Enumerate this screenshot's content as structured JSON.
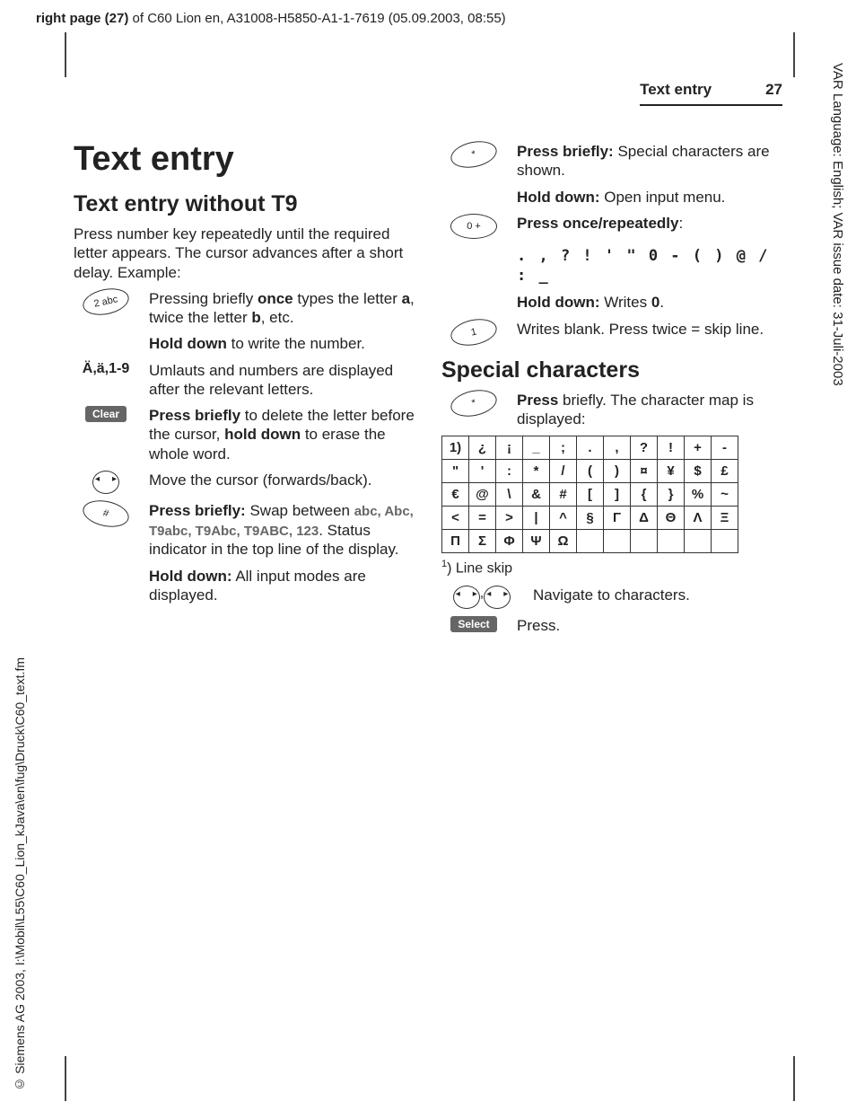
{
  "header": {
    "page_side": "right page (27)",
    "doc_info": " of C60 Lion en, A31008-H5850-A1-1-7619 (05.09.2003, 08:55)"
  },
  "side_right": "VAR Language: English; VAR issue date: 31-Juli-2003",
  "side_left": "© Siemens AG 2003, I:\\Mobil\\L55\\C60_Lion_kJava\\en\\fug\\Druck\\C60_text.fm",
  "running": {
    "title": "Text entry",
    "page": "27"
  },
  "col1": {
    "h1": "Text entry",
    "h2": "Text entry without T9",
    "intro": "Press number key repeatedly until the required letter appears. The cursor advances after a short delay. Example:",
    "key2_label": "2 abc",
    "key2_text1_a": "Pressing briefly ",
    "key2_text1_b": "once",
    "key2_text1_c": " types the letter ",
    "key2_text1_d": "a",
    "key2_text1_e": ", twice the letter ",
    "key2_text1_f": "b",
    "key2_text1_g": ", etc.",
    "key2_text2_a": "Hold down",
    "key2_text2_b": " to write the number.",
    "umlaut_label": "Ä,ä,1-9",
    "umlaut_text": "Umlauts and numbers are displayed after the relevant letters.",
    "clear_label": "Clear",
    "clear_text_a": "Press briefly",
    "clear_text_b": " to delete the letter before the cursor, ",
    "clear_text_c": "hold down",
    "clear_text_d": " to erase the whole word.",
    "nav_text": "Move the cursor (forwards/back).",
    "hash_key_label": "#",
    "hash_text1_a": "Press briefly:",
    "hash_text1_b": " Swap between ",
    "hash_text1_c": "abc, Abc, T9abc, T9Abc, T9ABC, 123",
    "hash_text1_d": ". Status indicator in the top line of the display.",
    "hash_text2_a": "Hold down:",
    "hash_text2_b": " All input modes are displayed."
  },
  "col2": {
    "star_label": "*",
    "star_text1_a": "Press briefly:",
    "star_text1_b": " Special characters are shown.",
    "star_text2_a": "Hold down:",
    "star_text2_b": " Open input menu.",
    "zero_label": "0 +",
    "zero_text1_a": "Press once/repeatedly",
    "zero_text1_b": ":",
    "zero_seq": ". , ? ! ' \" 0 - ( ) @ / : _",
    "zero_text2_a": "Hold down:",
    "zero_text2_b": " Writes ",
    "zero_text2_c": "0",
    "zero_text2_d": ".",
    "one_label": "1",
    "one_text": "Writes blank. Press twice = skip line.",
    "h2": "Special characters",
    "special_text_a": "Press",
    "special_text_b": " briefly. The character map is displayed:",
    "table": {
      "rows": [
        [
          "1)",
          "¿",
          "¡",
          "_",
          ";",
          ".",
          ",",
          "?",
          "!",
          "+",
          "-"
        ],
        [
          "\"",
          "'",
          ":",
          "*",
          "/",
          "(",
          ")",
          "¤",
          "¥",
          "$",
          "£"
        ],
        [
          "€",
          "@",
          "\\",
          "&",
          "#",
          "[",
          "]",
          "{",
          "}",
          "%",
          "~"
        ],
        [
          "<",
          "=",
          ">",
          "|",
          "^",
          "§",
          "Γ",
          "Δ",
          "Θ",
          "Λ",
          "Ξ"
        ],
        [
          "Π",
          "Σ",
          "Φ",
          "Ψ",
          "Ω",
          "",
          "",
          "",
          "",
          "",
          ""
        ]
      ]
    },
    "footnote": "1) Line skip",
    "nav_text": "Navigate to characters.",
    "select_label": "Select",
    "select_text": "Press."
  }
}
